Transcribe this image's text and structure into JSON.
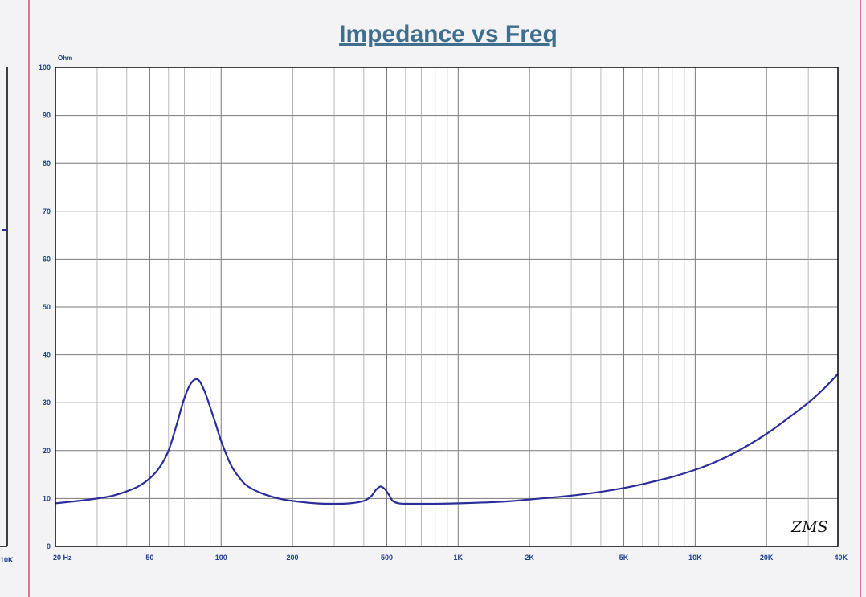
{
  "colors": {
    "title": "#3f6f8c",
    "axis_labels": "#1f3f8f",
    "curve": "#2b2d9a",
    "edge_line": "#e23a6a",
    "signature": "#111111"
  },
  "left_panel": {
    "partial_tick_label": "10K"
  },
  "chart_data": {
    "type": "line",
    "title": "Impedance vs Freq",
    "ylabel": "Ohm",
    "xlabel": "",
    "x_scale": "log",
    "xlim": [
      20,
      40000
    ],
    "ylim": [
      0,
      100
    ],
    "grid": true,
    "y_ticks": [
      0,
      10,
      20,
      30,
      40,
      50,
      60,
      70,
      80,
      90,
      100
    ],
    "x_ticks": [
      {
        "value": 20,
        "label": "20  Hz"
      },
      {
        "value": 50,
        "label": "50"
      },
      {
        "value": 100,
        "label": "100"
      },
      {
        "value": 200,
        "label": "200"
      },
      {
        "value": 500,
        "label": "500"
      },
      {
        "value": 1000,
        "label": "1K"
      },
      {
        "value": 2000,
        "label": "2K"
      },
      {
        "value": 5000,
        "label": "5K"
      },
      {
        "value": 10000,
        "label": "10K"
      },
      {
        "value": 20000,
        "label": "20K"
      },
      {
        "value": 40000,
        "label": "40K"
      }
    ],
    "series": [
      {
        "x": [
          20,
          25,
          30,
          35,
          40,
          45,
          50,
          55,
          60,
          65,
          70,
          75,
          80,
          85,
          90,
          95,
          100,
          110,
          120,
          130,
          150,
          175,
          200,
          250,
          300,
          350,
          400,
          430,
          450,
          470,
          490,
          510,
          530,
          560,
          600,
          700,
          800,
          1000,
          1500,
          2000,
          3000,
          4000,
          5000,
          6000,
          7000,
          8000,
          10000,
          12000,
          15000,
          20000,
          25000,
          30000,
          35000,
          40000
        ],
        "y": [
          9.0,
          9.5,
          10.0,
          10.6,
          11.5,
          12.6,
          14.2,
          16.5,
          20.0,
          25.5,
          31.0,
          34.2,
          34.8,
          32.5,
          29.0,
          25.5,
          22.0,
          17.0,
          14.2,
          12.5,
          11.0,
          10.0,
          9.5,
          9.0,
          8.9,
          9.0,
          9.5,
          10.5,
          11.8,
          12.5,
          12.0,
          10.8,
          9.5,
          9.0,
          8.9,
          8.9,
          8.9,
          9.0,
          9.3,
          9.8,
          10.6,
          11.4,
          12.2,
          13.0,
          13.8,
          14.5,
          16.0,
          17.5,
          19.8,
          23.5,
          27.0,
          30.0,
          33.0,
          36.0
        ]
      }
    ]
  },
  "signature_text": "ZMS"
}
